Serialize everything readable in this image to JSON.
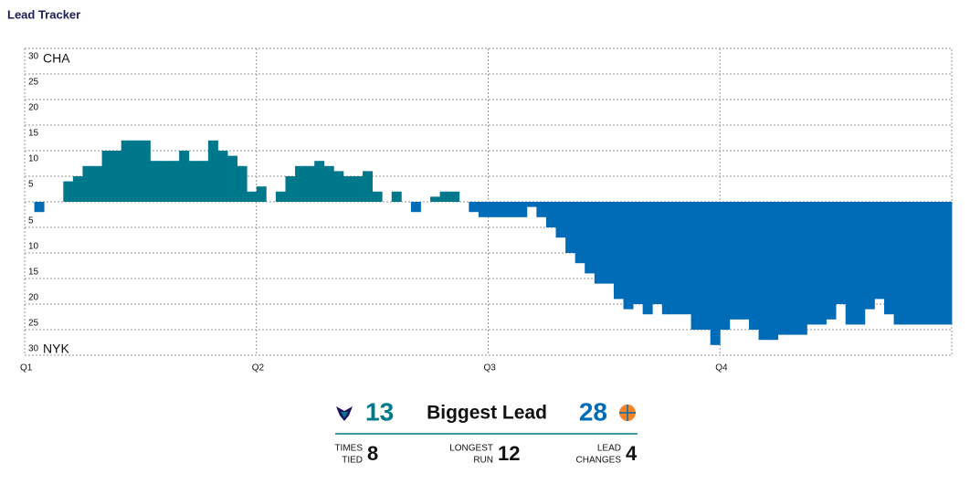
{
  "chart_data": {
    "type": "lead",
    "title": "Lead Tracker",
    "teams": [
      {
        "name": "CHA",
        "color": "#00788c"
      },
      {
        "name": "NYK",
        "color": "#006bb6"
      }
    ],
    "x": [
      0,
      0.5,
      1,
      1.5,
      2,
      2.5,
      3,
      3.5,
      4,
      4.5,
      5,
      5.5,
      6,
      6.5,
      7,
      7.5,
      8,
      8.5,
      9,
      9.5,
      10,
      10.5,
      11,
      11.5,
      12,
      12.5,
      13,
      13.5,
      14,
      14.5,
      15,
      15.5,
      16,
      16.5,
      17,
      17.5,
      18,
      18.5,
      19,
      19.5,
      20,
      20.5,
      21,
      21.5,
      22,
      22.5,
      23,
      23.5,
      24,
      24.5,
      25,
      25.5,
      26,
      26.5,
      27,
      27.5,
      28,
      28.5,
      29,
      29.5,
      30,
      30.5,
      31,
      31.5,
      32,
      32.5,
      33,
      33.5,
      34,
      34.5,
      35,
      35.5,
      36,
      36.5,
      37,
      37.5,
      38,
      38.5,
      39,
      39.5,
      40,
      40.5,
      41,
      41.5,
      42,
      42.5,
      43,
      43.5,
      44,
      44.5,
      45,
      45.5,
      46,
      46.5,
      47,
      47.5
    ],
    "values": [
      0,
      -2,
      0,
      0,
      4,
      5,
      7,
      7,
      10,
      10,
      12,
      12,
      12,
      8,
      8,
      8,
      10,
      8,
      8,
      12,
      10,
      9,
      7,
      2,
      3,
      0,
      2,
      5,
      7,
      7,
      8,
      7,
      6,
      5,
      5,
      6,
      2,
      0,
      2,
      0,
      -2,
      0,
      1,
      2,
      2,
      0,
      -2,
      -3,
      -3,
      -3,
      -3,
      -3,
      -1,
      -3,
      -5,
      -7,
      -10,
      -12,
      -14,
      -16,
      -16,
      -19,
      -21,
      -20,
      -22,
      -20,
      -22,
      -22,
      -22,
      -25,
      -25,
      -28,
      -25,
      -23,
      -23,
      -25,
      -27,
      -27,
      -26,
      -26,
      -26,
      -24,
      -24,
      -23,
      -20,
      -24,
      -24,
      -21,
      -19,
      -22,
      -24,
      -24,
      -24,
      -24,
      -24,
      -24
    ],
    "xlim": [
      0,
      48
    ],
    "xticks": [
      {
        "value": 0,
        "label": "Q1"
      },
      {
        "value": 12,
        "label": "Q2"
      },
      {
        "value": 24,
        "label": "Q3"
      },
      {
        "value": 36,
        "label": "Q4"
      }
    ],
    "ylim": [
      -30,
      30
    ],
    "yticks": [
      {
        "value": -30,
        "label": "30"
      },
      {
        "value": -25,
        "label": "25"
      },
      {
        "value": -20,
        "label": "20"
      },
      {
        "value": -15,
        "label": "15"
      },
      {
        "value": -10,
        "label": "10"
      },
      {
        "value": -5,
        "label": "5"
      },
      5,
      10,
      15,
      20,
      25,
      30
    ],
    "grid": true,
    "summary": {
      "biggest_lead": {
        "label": "Biggest Lead",
        "values": [
          13,
          28
        ]
      },
      "stats": [
        {
          "label": [
            "TIMES",
            "TIED"
          ],
          "value": 8
        },
        {
          "label": [
            "LONGEST",
            "RUN"
          ],
          "value": 12
        },
        {
          "label": [
            "LEAD",
            "CHANGES"
          ],
          "value": 4
        }
      ]
    }
  }
}
